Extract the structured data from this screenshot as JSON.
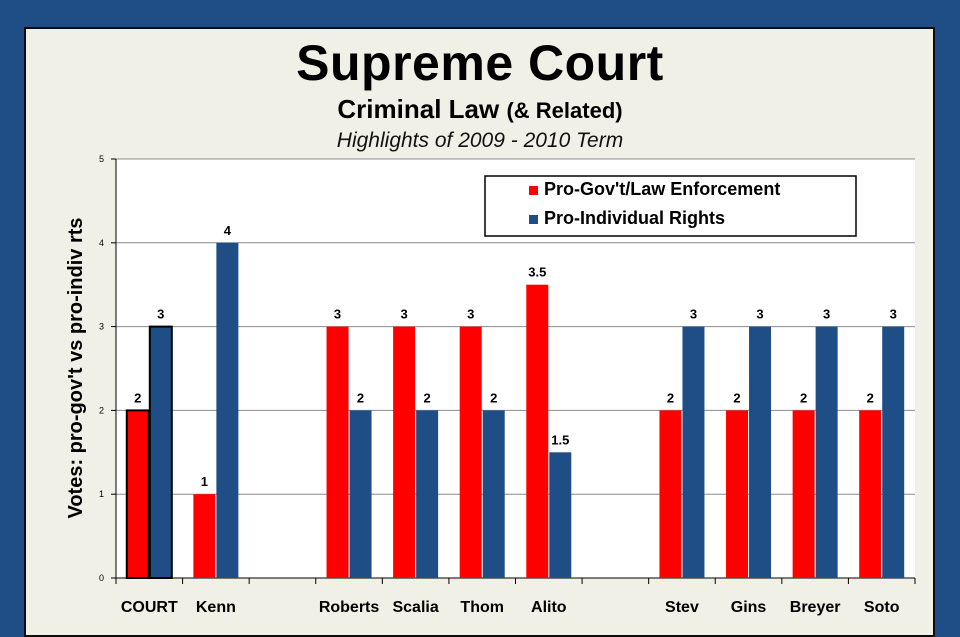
{
  "title": "Supreme Court",
  "subtitle_main": "Criminal Law",
  "subtitle_paren": "(& Related)",
  "subtitle_note": "Highlights of 2009 - 2010 Term",
  "colors": {
    "background": "#1f4e86",
    "panel": "#f1f0e6",
    "gov": "#ff0000",
    "ind": "#1f4e86"
  },
  "chart_data": {
    "type": "bar",
    "ylabel": "Votes: pro-gov't  vs  pro-indiv rts",
    "ylim": [
      0,
      5
    ],
    "yticks": [
      "0",
      "1",
      "2",
      "3",
      "4",
      "5"
    ],
    "grid": true,
    "legend_position": "top-right",
    "categories": [
      "COURT",
      "Kenn",
      "",
      "Roberts",
      "Scalia",
      "Thom",
      "Alito",
      "",
      "Stev",
      "Gins",
      "Breyer",
      "Soto"
    ],
    "series": [
      {
        "name": "Pro-Gov't/Law Enforcement",
        "color": "#ff0000",
        "values": [
          2,
          1,
          null,
          3,
          3,
          3,
          3.5,
          null,
          2,
          2,
          2,
          2
        ]
      },
      {
        "name": "Pro-Individual Rights",
        "color": "#1f4e86",
        "values": [
          3,
          4,
          null,
          2,
          2,
          2,
          1.5,
          null,
          3,
          3,
          3,
          3
        ]
      }
    ],
    "data_labels": [
      [
        "2",
        "1",
        "",
        "3",
        "3",
        "3",
        "3.5",
        "",
        "2",
        "2",
        "2",
        "2"
      ],
      [
        "3",
        "4",
        "",
        "2",
        "2",
        "2",
        "1.5",
        "",
        "3",
        "3",
        "3",
        "3"
      ]
    ]
  }
}
